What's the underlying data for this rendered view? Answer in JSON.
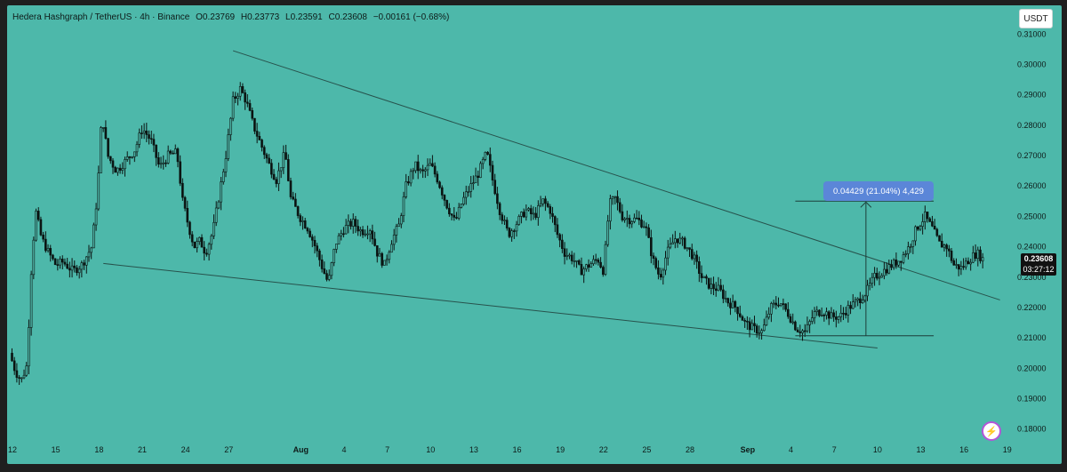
{
  "header": {
    "symbol": "Hedera Hashgraph / TetherUS · 4h · Binance",
    "open": "O0.23769",
    "high": "H0.23773",
    "low": "L0.23591",
    "close": "C0.23608",
    "change": "−0.00161 (−0.68%)"
  },
  "toolbar": {
    "unit_label": "USDT",
    "bolt_icon": "lightning-bolt-icon"
  },
  "price_tag": {
    "price": "0.23608",
    "countdown": "03:27:12"
  },
  "measure": {
    "label": "0.04429 (21.04%) 4,429"
  },
  "colors": {
    "background": "#4db8aa",
    "candle": "#0b1412",
    "line": "#27524c",
    "measure_box": "#5b86d8"
  },
  "chart_data": {
    "type": "candlestick",
    "title": "Hedera Hashgraph / TetherUS · 4h · Binance",
    "ylim": [
      0.177,
      0.313
    ],
    "y_ticks": [
      "0.31000",
      "0.30000",
      "0.29000",
      "0.28000",
      "0.27000",
      "0.26000",
      "0.25000",
      "0.24000",
      "0.23000",
      "0.22000",
      "0.21000",
      "0.20000",
      "0.19000",
      "0.18000"
    ],
    "x_ticks": [
      {
        "day": 12,
        "label": "12"
      },
      {
        "day": 15,
        "label": "15"
      },
      {
        "day": 18,
        "label": "18"
      },
      {
        "day": 21,
        "label": "21"
      },
      {
        "day": 24,
        "label": "24"
      },
      {
        "day": 27,
        "label": "27"
      },
      {
        "day": 32,
        "label": "Aug"
      },
      {
        "day": 35,
        "label": "4"
      },
      {
        "day": 38,
        "label": "7"
      },
      {
        "day": 41,
        "label": "10"
      },
      {
        "day": 44,
        "label": "13"
      },
      {
        "day": 47,
        "label": "16"
      },
      {
        "day": 50,
        "label": "19"
      },
      {
        "day": 53,
        "label": "22"
      },
      {
        "day": 56,
        "label": "25"
      },
      {
        "day": 59,
        "label": "28"
      },
      {
        "day": 63,
        "label": "Sep"
      },
      {
        "day": 66,
        "label": "4"
      },
      {
        "day": 69,
        "label": "7"
      },
      {
        "day": 72,
        "label": "10"
      },
      {
        "day": 75,
        "label": "13"
      },
      {
        "day": 78,
        "label": "16"
      },
      {
        "day": 81,
        "label": "19"
      }
    ],
    "x_domain_days": [
      11.75,
      81.2
    ],
    "price_path": [
      [
        11.8,
        0.205
      ],
      [
        12.2,
        0.199
      ],
      [
        12.6,
        0.196
      ],
      [
        13.0,
        0.201
      ],
      [
        13.3,
        0.232
      ],
      [
        13.6,
        0.252
      ],
      [
        14.0,
        0.243
      ],
      [
        14.5,
        0.238
      ],
      [
        15.0,
        0.234
      ],
      [
        15.5,
        0.235
      ],
      [
        16.2,
        0.232
      ],
      [
        16.8,
        0.234
      ],
      [
        17.5,
        0.24
      ],
      [
        17.9,
        0.258
      ],
      [
        18.2,
        0.284
      ],
      [
        18.6,
        0.27
      ],
      [
        19.2,
        0.265
      ],
      [
        19.8,
        0.268
      ],
      [
        20.5,
        0.272
      ],
      [
        21.0,
        0.279
      ],
      [
        21.6,
        0.275
      ],
      [
        22.2,
        0.266
      ],
      [
        22.8,
        0.27
      ],
      [
        23.4,
        0.271
      ],
      [
        23.8,
        0.255
      ],
      [
        24.2,
        0.247
      ],
      [
        24.6,
        0.24
      ],
      [
        25.0,
        0.242
      ],
      [
        25.4,
        0.238
      ],
      [
        25.9,
        0.245
      ],
      [
        26.3,
        0.256
      ],
      [
        26.8,
        0.27
      ],
      [
        27.3,
        0.288
      ],
      [
        27.8,
        0.292
      ],
      [
        28.2,
        0.288
      ],
      [
        28.7,
        0.28
      ],
      [
        29.2,
        0.274
      ],
      [
        29.8,
        0.267
      ],
      [
        30.3,
        0.262
      ],
      [
        30.9,
        0.271
      ],
      [
        31.3,
        0.256
      ],
      [
        31.9,
        0.25
      ],
      [
        32.5,
        0.246
      ],
      [
        33.0,
        0.24
      ],
      [
        33.5,
        0.233
      ],
      [
        33.9,
        0.228
      ],
      [
        34.4,
        0.241
      ],
      [
        35.0,
        0.246
      ],
      [
        35.6,
        0.248
      ],
      [
        36.2,
        0.245
      ],
      [
        36.8,
        0.246
      ],
      [
        37.3,
        0.238
      ],
      [
        37.8,
        0.234
      ],
      [
        38.3,
        0.242
      ],
      [
        38.8,
        0.247
      ],
      [
        39.3,
        0.26
      ],
      [
        39.9,
        0.267
      ],
      [
        40.4,
        0.264
      ],
      [
        41.0,
        0.267
      ],
      [
        41.5,
        0.262
      ],
      [
        42.1,
        0.254
      ],
      [
        42.7,
        0.248
      ],
      [
        43.2,
        0.255
      ],
      [
        43.8,
        0.26
      ],
      [
        44.3,
        0.264
      ],
      [
        44.9,
        0.271
      ],
      [
        45.3,
        0.262
      ],
      [
        45.8,
        0.252
      ],
      [
        46.4,
        0.244
      ],
      [
        47.0,
        0.248
      ],
      [
        47.6,
        0.252
      ],
      [
        48.2,
        0.25
      ],
      [
        48.8,
        0.255
      ],
      [
        49.3,
        0.252
      ],
      [
        49.8,
        0.244
      ],
      [
        50.3,
        0.238
      ],
      [
        50.9,
        0.236
      ],
      [
        51.4,
        0.232
      ],
      [
        52.0,
        0.234
      ],
      [
        52.6,
        0.236
      ],
      [
        53.0,
        0.232
      ],
      [
        53.4,
        0.254
      ],
      [
        53.8,
        0.256
      ],
      [
        54.3,
        0.25
      ],
      [
        54.8,
        0.249
      ],
      [
        55.3,
        0.249
      ],
      [
        55.9,
        0.247
      ],
      [
        56.4,
        0.236
      ],
      [
        56.9,
        0.23
      ],
      [
        57.4,
        0.238
      ],
      [
        58.0,
        0.243
      ],
      [
        58.6,
        0.241
      ],
      [
        59.2,
        0.237
      ],
      [
        59.8,
        0.23
      ],
      [
        60.4,
        0.227
      ],
      [
        61.0,
        0.226
      ],
      [
        61.6,
        0.222
      ],
      [
        62.2,
        0.22
      ],
      [
        62.8,
        0.215
      ],
      [
        63.4,
        0.213
      ],
      [
        64.0,
        0.212
      ],
      [
        64.6,
        0.22
      ],
      [
        65.2,
        0.222
      ],
      [
        65.8,
        0.218
      ],
      [
        66.4,
        0.213
      ],
      [
        67.0,
        0.212
      ],
      [
        67.6,
        0.218
      ],
      [
        68.2,
        0.219
      ],
      [
        68.8,
        0.217
      ],
      [
        69.4,
        0.217
      ],
      [
        70.0,
        0.22
      ],
      [
        70.6,
        0.222
      ],
      [
        71.2,
        0.225
      ],
      [
        71.8,
        0.23
      ],
      [
        72.4,
        0.232
      ],
      [
        73.0,
        0.234
      ],
      [
        73.6,
        0.236
      ],
      [
        74.2,
        0.24
      ],
      [
        74.7,
        0.246
      ],
      [
        75.3,
        0.25
      ],
      [
        75.8,
        0.246
      ],
      [
        76.3,
        0.241
      ],
      [
        76.8,
        0.24
      ],
      [
        77.3,
        0.234
      ],
      [
        77.8,
        0.233
      ],
      [
        78.4,
        0.236
      ],
      [
        78.9,
        0.238
      ],
      [
        79.3,
        0.236
      ]
    ],
    "trendlines": [
      {
        "name": "upper",
        "x": [
          27.3,
          80.5
        ],
        "y": [
          0.3045,
          0.2225
        ]
      },
      {
        "name": "lower",
        "x": [
          18.3,
          72.0
        ],
        "y": [
          0.2345,
          0.2067
        ]
      }
    ],
    "measure": {
      "x0": 66.3,
      "x1": 75.9,
      "x_mid": 71.2,
      "low": 0.2107,
      "high": 0.255
    },
    "last_price": 0.23608
  }
}
